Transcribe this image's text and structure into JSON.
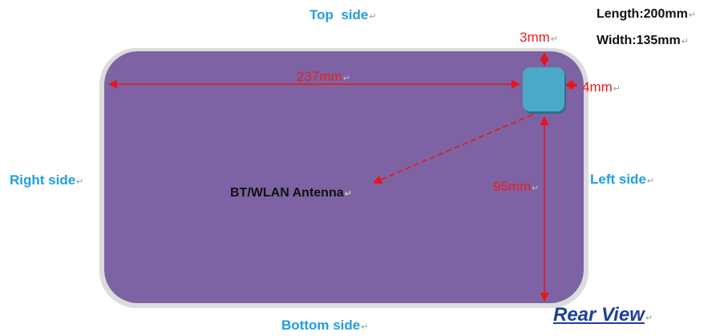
{
  "labels": {
    "top_side": "Top  side",
    "bottom_side": "Bottom side",
    "right_side": "Right side",
    "left_side": "Left side",
    "rear_view": "Rear View",
    "antenna": "BT/WLAN Antenna"
  },
  "specs": {
    "length": "Length:200mm",
    "width": "Width:135mm"
  },
  "dimensions": {
    "horizontal": "237mm",
    "top_gap": "3mm",
    "right_gap": "4mm",
    "vertical": "95mm"
  },
  "paragraph_mark": "↵",
  "colors": {
    "device_body": "#7d63a3",
    "device_border": "#d9d9d9",
    "antenna_module": "#4aa9c8",
    "dimension_line": "#e8141b",
    "side_label": "#1f9ee0",
    "rear_view": "#1f3f98"
  }
}
